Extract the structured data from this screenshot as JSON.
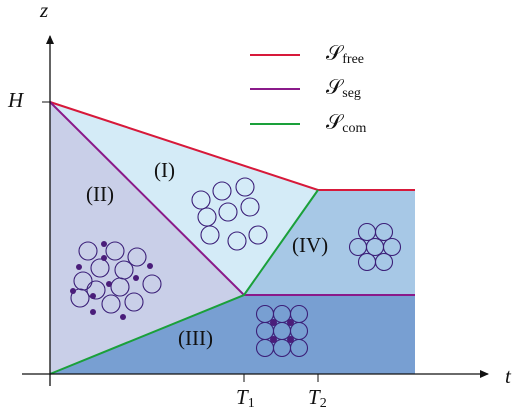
{
  "axes": {
    "y_label": "z",
    "x_label": "t",
    "h_label": "H",
    "t1": {
      "base": "T",
      "sub": "1"
    },
    "t2": {
      "base": "T",
      "sub": "2"
    }
  },
  "legend": [
    {
      "base": "𝒮",
      "sub": "free"
    },
    {
      "base": "𝒮",
      "sub": "seg"
    },
    {
      "base": "𝒮",
      "sub": "com"
    }
  ],
  "regions": [
    "(I)",
    "(II)",
    "(III)",
    "(IV)"
  ]
}
